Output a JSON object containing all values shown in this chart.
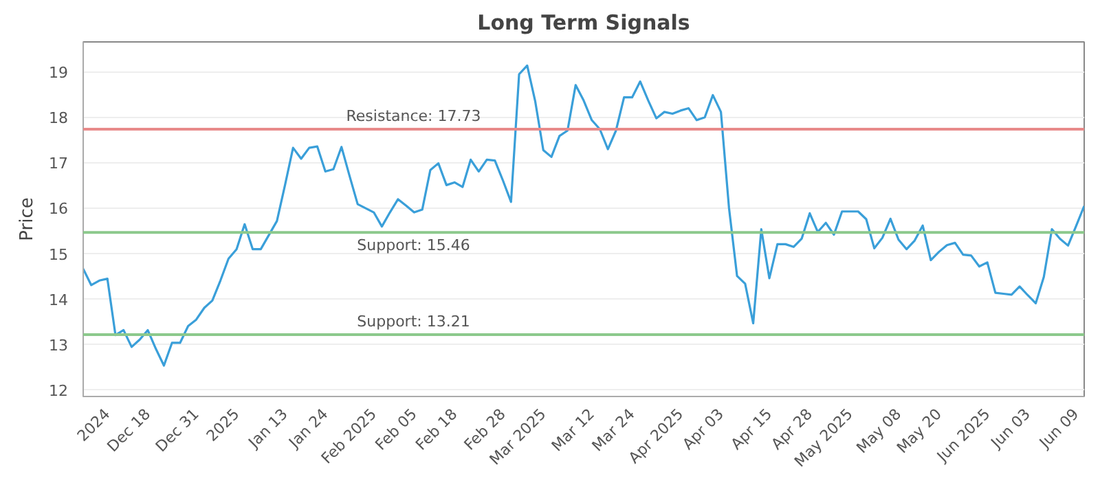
{
  "chart_data": {
    "type": "line",
    "title": "Long Term Signals",
    "ylabel": "Price",
    "categories": [
      null,
      null,
      null,
      "2024",
      null,
      null,
      null,
      null,
      "Dec 18",
      null,
      null,
      null,
      null,
      null,
      "Dec 31",
      null,
      null,
      null,
      null,
      "2025",
      null,
      null,
      null,
      null,
      null,
      "Jan 13",
      null,
      null,
      null,
      null,
      "Jan 24",
      null,
      null,
      null,
      null,
      null,
      "Feb 2025",
      null,
      null,
      null,
      null,
      "Feb 05",
      null,
      null,
      null,
      null,
      "Feb 18",
      null,
      null,
      null,
      null,
      null,
      "Feb 28",
      null,
      null,
      null,
      null,
      "Mar 2025",
      null,
      null,
      null,
      null,
      null,
      "Mar 12",
      null,
      null,
      null,
      null,
      "Mar 24",
      null,
      null,
      null,
      null,
      null,
      "Apr 2025",
      null,
      null,
      null,
      null,
      "Apr 03",
      null,
      null,
      null,
      null,
      null,
      "Apr 15",
      null,
      null,
      null,
      null,
      "Apr 28",
      null,
      null,
      null,
      null,
      "May 2025",
      null,
      null,
      null,
      null,
      null,
      "May 08",
      null,
      null,
      null,
      null,
      "May 20",
      null,
      null,
      null,
      null,
      null,
      "Jun 2025",
      null,
      null,
      null,
      null,
      "Jun 03",
      null,
      null,
      null,
      null,
      null,
      "Jun 09",
      null
    ],
    "series": [
      {
        "color": "#3a9fd9",
        "values": [
          14.66,
          14.3,
          14.4,
          14.44,
          13.2,
          13.31,
          12.94,
          13.1,
          13.31,
          12.9,
          12.53,
          13.03,
          13.03,
          13.4,
          13.54,
          13.8,
          13.96,
          14.4,
          14.88,
          15.09,
          15.64,
          15.09,
          15.09,
          15.4,
          15.71,
          16.5,
          17.32,
          17.08,
          17.32,
          17.35,
          16.8,
          16.85,
          17.34,
          16.7,
          16.08,
          15.99,
          15.9,
          15.59,
          15.9,
          16.19,
          16.05,
          15.9,
          15.96,
          16.83,
          16.98,
          16.5,
          16.56,
          16.46,
          17.06,
          16.8,
          17.06,
          17.04,
          16.6,
          16.13,
          18.94,
          19.13,
          18.34,
          17.27,
          17.12,
          17.58,
          17.7,
          18.7,
          18.36,
          17.93,
          17.73,
          17.29,
          17.7,
          18.43,
          18.43,
          18.78,
          18.36,
          17.97,
          18.11,
          18.07,
          18.14,
          18.19,
          17.93,
          17.99,
          18.48,
          18.11,
          16.0,
          14.5,
          14.33,
          13.46,
          15.53,
          14.45,
          15.2,
          15.2,
          15.14,
          15.32,
          15.88,
          15.47,
          15.67,
          15.41,
          15.92,
          15.92,
          15.92,
          15.75,
          15.11,
          15.34,
          15.76,
          15.3,
          15.09,
          15.28,
          15.61,
          14.85,
          15.03,
          15.18,
          15.23,
          14.97,
          14.95,
          14.71,
          14.8,
          14.13,
          14.11,
          14.09,
          14.27,
          14.08,
          13.9,
          14.48,
          15.53,
          15.32,
          15.17,
          15.6,
          16.04
        ]
      }
    ],
    "ylim": [
      11.85,
      19.65
    ],
    "yticks": [
      12,
      13,
      14,
      15,
      16,
      17,
      18,
      19
    ],
    "grid": "y",
    "ref_lines": [
      {
        "axis": "y",
        "value": 17.73,
        "label": "Resistance: 17.73",
        "color": "#e88a8a"
      },
      {
        "axis": "y",
        "value": 15.46,
        "label": "Support: 15.46",
        "color": "#8cc98c"
      },
      {
        "axis": "y",
        "value": 13.21,
        "label": "Support: 13.21",
        "color": "#8cc98c"
      }
    ]
  }
}
